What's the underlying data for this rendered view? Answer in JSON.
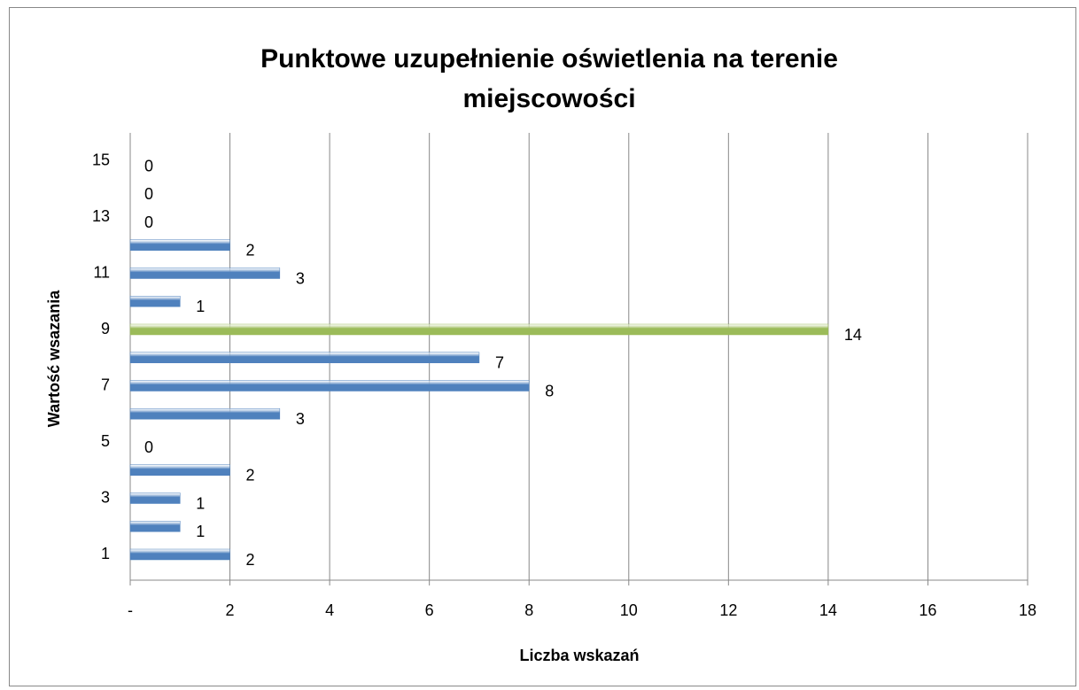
{
  "chart_data": {
    "type": "bar",
    "orientation": "horizontal",
    "title": [
      "Punktowe uzupełnienie oświetlenia na terenie",
      "miejscowości"
    ],
    "x_label": "Liczba wskazań",
    "y_label": "Wartość wsazania",
    "categories": [
      "1",
      null,
      "3",
      null,
      "5",
      null,
      "7",
      null,
      "9",
      null,
      "11",
      null,
      "13",
      null,
      "15"
    ],
    "values": [
      2,
      1,
      1,
      2,
      0,
      3,
      8,
      7,
      14,
      1,
      3,
      2,
      0,
      0,
      0
    ],
    "colors": [
      "#4f81bd",
      "#4f81bd",
      "#4f81bd",
      "#4f81bd",
      "#4f81bd",
      "#4f81bd",
      "#4f81bd",
      "#4f81bd",
      "#9bbb59",
      "#4f81bd",
      "#4f81bd",
      "#4f81bd",
      "#4f81bd",
      "#4f81bd",
      "#4f81bd"
    ],
    "xlim": [
      0,
      18
    ],
    "xticks": [
      {
        "value": 0,
        "label": "-"
      },
      2,
      4,
      6,
      8,
      10,
      12,
      14,
      16,
      18
    ],
    "grid": true
  }
}
